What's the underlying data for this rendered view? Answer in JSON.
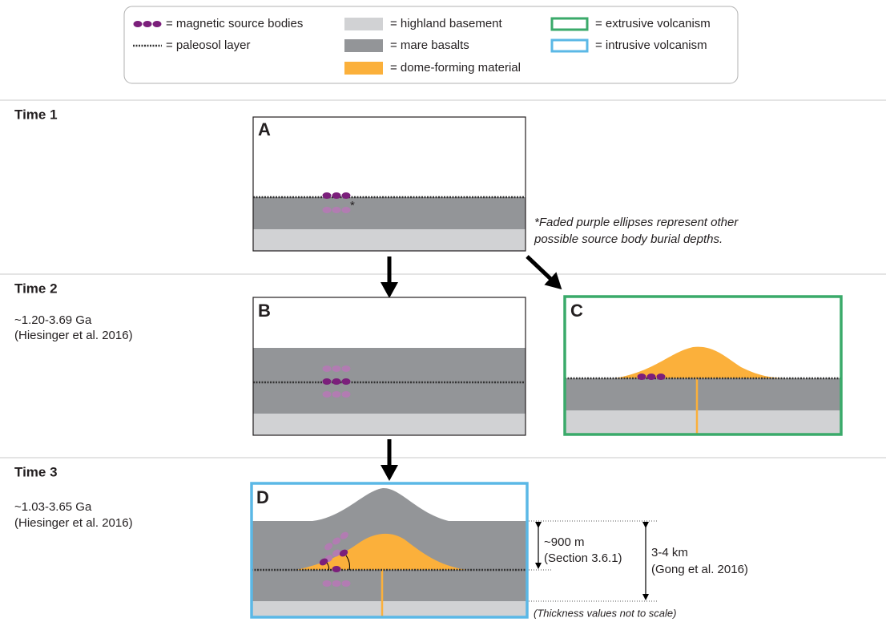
{
  "legend": {
    "items": [
      "= magnetic source bodies",
      "= paleosol layer",
      "= highland basement",
      "= mare basalts",
      "= dome-forming material",
      "= extrusive volcanism",
      "= intrusive volcanism"
    ]
  },
  "times": [
    {
      "label": "Time 1"
    },
    {
      "label": "Time 2",
      "age": "~1.20-3.69 Ga",
      "reference": "(Hiesinger et al. 2016)"
    },
    {
      "label": "Time 3",
      "age": "~1.03-3.65 Ga",
      "reference": "(Hiesinger et al. 2016)"
    }
  ],
  "panels": {
    "labels": [
      "A",
      "B",
      "C",
      "D"
    ]
  },
  "annotations": {
    "asterisk": "*",
    "footnote": [
      "*Faded purple ellipses represent other",
      "possible source body burial depths."
    ],
    "thickness_small": "~900 m",
    "thickness_small_ref": "(Section 3.6.1)",
    "thickness_large": "3-4 km",
    "thickness_large_ref": "(Gong et al. 2016)",
    "scale_note": "(Thickness values not to scale)"
  }
}
